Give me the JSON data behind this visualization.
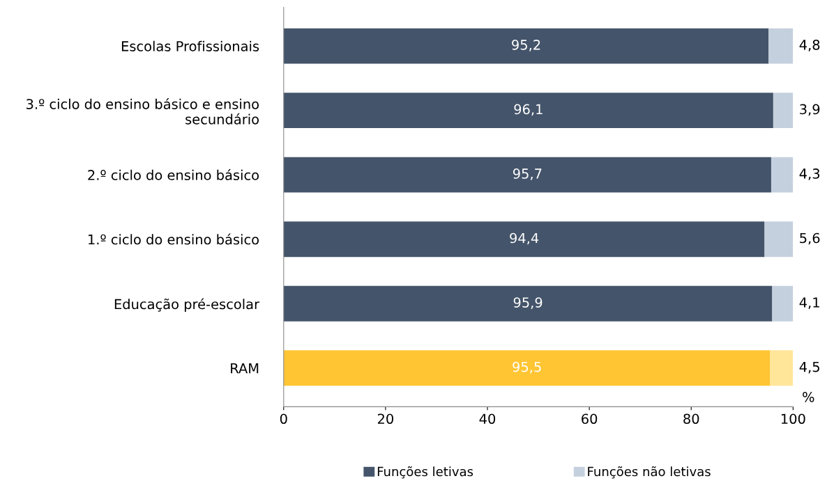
{
  "chart_data": {
    "type": "bar",
    "orientation": "horizontal",
    "stacked": true,
    "categories": [
      "Escolas Profissionais",
      "3.º ciclo do ensino básico e ensino secundário",
      "2.º ciclo do ensino básico",
      "1.º ciclo do ensino básico",
      "Educação pré-escolar",
      "RAM"
    ],
    "series": [
      {
        "name": "Funções letivas",
        "color": "#44546a",
        "colors": [
          "#44546a",
          "#44546a",
          "#44546a",
          "#44546a",
          "#44546a",
          "#ffc533"
        ],
        "values": [
          95.2,
          96.1,
          95.7,
          94.4,
          95.9,
          95.5
        ],
        "value_labels": [
          "95,2",
          "96,1",
          "95,7",
          "94,4",
          "95,9",
          "95,5"
        ]
      },
      {
        "name": "Funções não letivas",
        "color": "#c5d0de",
        "colors": [
          "#c5d0de",
          "#c5d0de",
          "#c5d0de",
          "#c5d0de",
          "#c5d0de",
          "#ffe699"
        ],
        "values": [
          4.8,
          3.9,
          4.3,
          5.6,
          4.1,
          4.5
        ],
        "value_labels": [
          "4,8",
          "3,9",
          "4,3",
          "5,6",
          "4,1",
          "4,5"
        ]
      }
    ],
    "xlabel": "%",
    "xlim": [
      0,
      100
    ],
    "xticks": [
      0,
      20,
      40,
      60,
      80,
      100
    ],
    "legend": "bottom",
    "grid": false
  }
}
